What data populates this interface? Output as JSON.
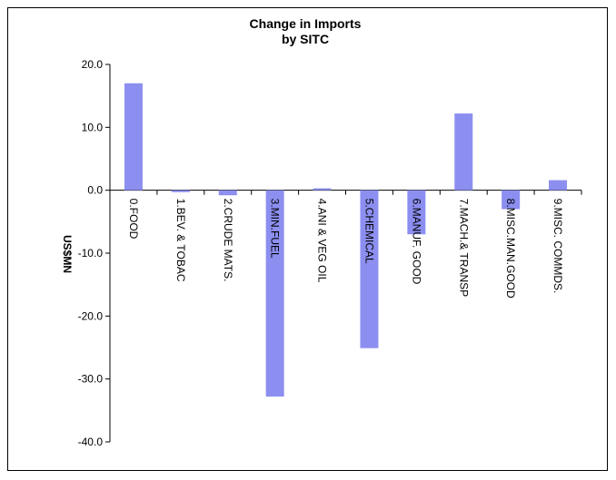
{
  "chart_data": {
    "type": "bar",
    "title_line1": "Change in Imports",
    "title_line2": "by SITC",
    "xlabel": "",
    "ylabel": "US$MN",
    "ylim": [
      -40,
      20
    ],
    "yticks": [
      "20.0",
      "10.0",
      "0.0",
      "-10.0",
      "-20.0",
      "-30.0",
      "-40.0"
    ],
    "categories": [
      "0.FOOD",
      "1.BEV. & TOBAC",
      "2.CRUDE MATS.",
      "3.MIN.FUEL",
      "4.ANI & VEG OIL",
      "5.CHEMICAL",
      "6.MANUF. GOOD",
      "7.MACH.& TRANSP",
      "8.MISC.MAN.GOOD",
      "9.MISC. COMMDS."
    ],
    "values": [
      17.0,
      -0.3,
      -0.8,
      -32.8,
      0.3,
      -25.1,
      -7.0,
      12.2,
      -3.0,
      1.6
    ],
    "bar_color": "#8c8ff0",
    "grid": false
  }
}
